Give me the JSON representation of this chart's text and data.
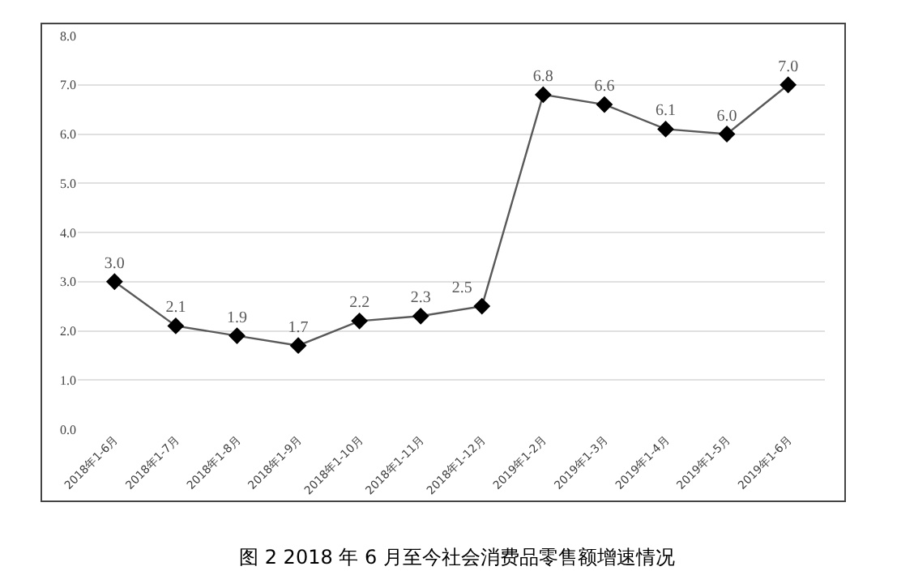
{
  "chart_data": {
    "type": "line",
    "title": "图 2 2018 年 6 月至今社会消费品零售额增速情况",
    "categories": [
      "2018年1-6月",
      "2018年1-7月",
      "2018年1-8月",
      "2018年1-9月",
      "2018年1-10月",
      "2018年1-11月",
      "2018年1-12月",
      "2019年1-2月",
      "2019年1-3月",
      "2019年1-4月",
      "2019年1-5月",
      "2019年1-6月"
    ],
    "series": [
      {
        "color": "#000000",
        "values": [
          3.0,
          2.1,
          1.9,
          1.7,
          2.2,
          2.3,
          2.5,
          6.8,
          6.6,
          6.1,
          6.0,
          7.0
        ],
        "value_labels": [
          "3.0",
          "2.1",
          "1.9",
          "1.7",
          "2.2",
          "2.3",
          "2.5",
          "6.8",
          "6.6",
          "6.1",
          "6.0",
          "7.0"
        ]
      }
    ],
    "ylim": [
      0,
      8
    ],
    "yticks": [
      {
        "value": 0,
        "label": "0.0"
      },
      {
        "value": 1,
        "label": "1.0"
      },
      {
        "value": 2,
        "label": "2.0"
      },
      {
        "value": 3,
        "label": "3.0"
      },
      {
        "value": 4,
        "label": "4.0"
      },
      {
        "value": 5,
        "label": "5.0"
      },
      {
        "value": 6,
        "label": "6.0"
      },
      {
        "value": 7,
        "label": "7.0"
      },
      {
        "value": 8,
        "label": "8.0"
      }
    ],
    "grid": "y",
    "marker": "diamond",
    "line_style": "solid"
  }
}
